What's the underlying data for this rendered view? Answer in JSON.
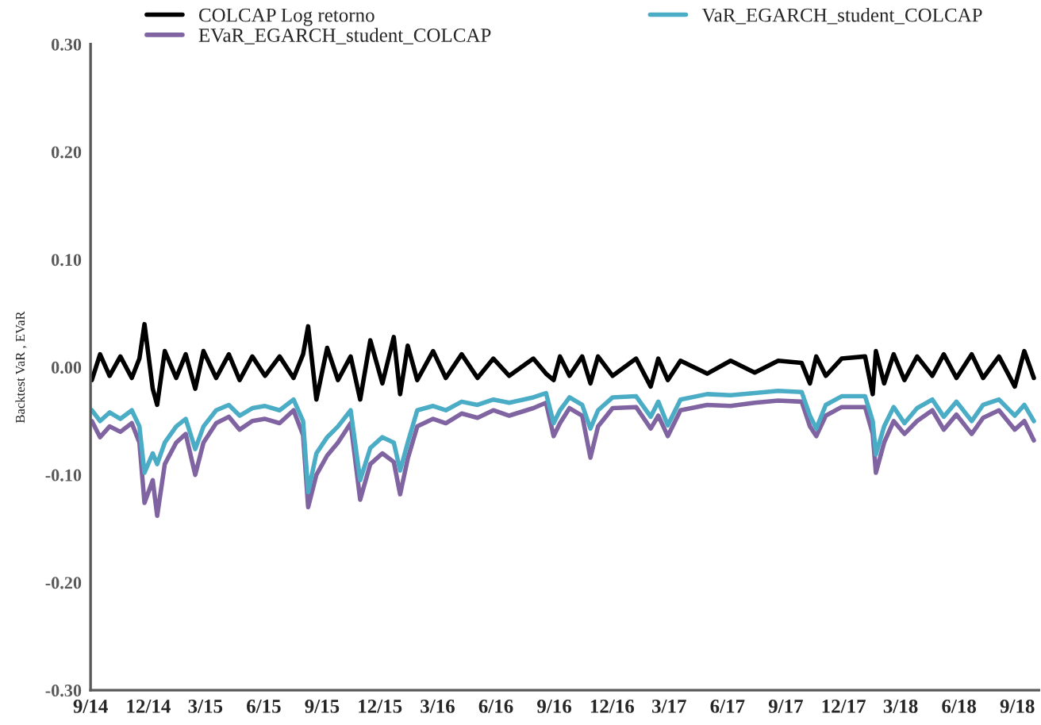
{
  "chart_data": {
    "type": "line",
    "ylabel": "Backtest VaR , EVaR",
    "x": [
      "2014-09-03",
      "2014-09-16",
      "2014-10-01",
      "2014-10-18",
      "2014-11-05",
      "2014-11-17",
      "2014-11-25",
      "2014-12-08",
      "2014-12-15",
      "2014-12-27",
      "2015-01-14",
      "2015-01-29",
      "2015-02-13",
      "2015-02-26",
      "2015-03-18",
      "2015-04-07",
      "2015-04-24",
      "2015-05-14",
      "2015-06-03",
      "2015-06-26",
      "2015-07-18",
      "2015-08-02",
      "2015-08-10",
      "2015-08-23",
      "2015-09-09",
      "2015-09-26",
      "2015-10-16",
      "2015-10-31",
      "2015-11-16",
      "2015-12-05",
      "2015-12-23",
      "2016-01-02",
      "2016-01-14",
      "2016-01-29",
      "2016-02-23",
      "2016-03-14",
      "2016-04-08",
      "2016-05-03",
      "2016-05-28",
      "2016-06-22",
      "2016-07-30",
      "2016-08-19",
      "2016-08-31",
      "2016-09-10",
      "2016-09-25",
      "2016-10-15",
      "2016-10-28",
      "2016-11-09",
      "2016-12-02",
      "2017-01-08",
      "2017-01-31",
      "2017-02-12",
      "2017-02-27",
      "2017-03-19",
      "2017-04-30",
      "2017-06-06",
      "2017-07-14",
      "2017-08-20",
      "2017-09-26",
      "2017-10-09",
      "2017-10-19",
      "2017-11-03",
      "2017-11-28",
      "2018-01-04",
      "2018-01-16",
      "2018-01-21",
      "2018-02-03",
      "2018-02-18",
      "2018-03-07",
      "2018-03-27",
      "2018-04-20",
      "2018-05-08",
      "2018-05-28",
      "2018-06-21",
      "2018-07-09",
      "2018-08-03",
      "2018-08-28",
      "2018-09-12",
      "2018-09-27"
    ],
    "series": [
      {
        "name": "COLCAP Log retorno",
        "color": "#000000",
        "values": [
          -0.012,
          0.012,
          -0.008,
          0.01,
          -0.01,
          0.008,
          0.04,
          -0.02,
          -0.035,
          0.015,
          -0.01,
          0.012,
          -0.02,
          0.015,
          -0.01,
          0.012,
          -0.012,
          0.01,
          -0.008,
          0.01,
          -0.01,
          0.012,
          0.038,
          -0.03,
          0.018,
          -0.012,
          0.01,
          -0.03,
          0.025,
          -0.015,
          0.028,
          -0.025,
          0.02,
          -0.012,
          0.015,
          -0.01,
          0.012,
          -0.01,
          0.008,
          -0.008,
          0.008,
          -0.006,
          -0.012,
          0.01,
          -0.008,
          0.01,
          -0.015,
          0.01,
          -0.008,
          0.008,
          -0.018,
          0.008,
          -0.012,
          0.006,
          -0.006,
          0.006,
          -0.005,
          0.006,
          0.004,
          -0.015,
          0.01,
          -0.008,
          0.008,
          0.01,
          -0.025,
          0.015,
          -0.015,
          0.012,
          -0.012,
          0.01,
          -0.008,
          0.012,
          -0.01,
          0.012,
          -0.01,
          0.01,
          -0.018,
          0.015,
          -0.01
        ]
      },
      {
        "name": "EVaR_EGARCH_student_COLCAP",
        "color": "#8064a2",
        "values": [
          -0.05,
          -0.065,
          -0.055,
          -0.06,
          -0.052,
          -0.07,
          -0.126,
          -0.105,
          -0.138,
          -0.09,
          -0.07,
          -0.062,
          -0.1,
          -0.07,
          -0.052,
          -0.046,
          -0.058,
          -0.05,
          -0.048,
          -0.052,
          -0.04,
          -0.063,
          -0.13,
          -0.1,
          -0.082,
          -0.07,
          -0.052,
          -0.123,
          -0.09,
          -0.08,
          -0.088,
          -0.118,
          -0.085,
          -0.055,
          -0.048,
          -0.052,
          -0.043,
          -0.047,
          -0.04,
          -0.045,
          -0.038,
          -0.033,
          -0.064,
          -0.052,
          -0.038,
          -0.045,
          -0.084,
          -0.055,
          -0.038,
          -0.037,
          -0.057,
          -0.045,
          -0.064,
          -0.04,
          -0.035,
          -0.036,
          -0.033,
          -0.031,
          -0.032,
          -0.055,
          -0.064,
          -0.045,
          -0.037,
          -0.037,
          -0.062,
          -0.098,
          -0.07,
          -0.05,
          -0.062,
          -0.05,
          -0.04,
          -0.058,
          -0.044,
          -0.062,
          -0.047,
          -0.04,
          -0.058,
          -0.05,
          -0.068
        ]
      },
      {
        "name": "VaR_EGARCH_student_COLCAP",
        "color": "#4bacc6",
        "values": [
          -0.04,
          -0.05,
          -0.042,
          -0.048,
          -0.04,
          -0.055,
          -0.098,
          -0.08,
          -0.09,
          -0.07,
          -0.055,
          -0.048,
          -0.076,
          -0.055,
          -0.04,
          -0.035,
          -0.045,
          -0.038,
          -0.036,
          -0.04,
          -0.03,
          -0.05,
          -0.116,
          -0.08,
          -0.065,
          -0.055,
          -0.04,
          -0.105,
          -0.075,
          -0.065,
          -0.07,
          -0.096,
          -0.07,
          -0.04,
          -0.036,
          -0.04,
          -0.032,
          -0.035,
          -0.03,
          -0.033,
          -0.028,
          -0.024,
          -0.052,
          -0.04,
          -0.028,
          -0.035,
          -0.057,
          -0.04,
          -0.028,
          -0.027,
          -0.046,
          -0.032,
          -0.054,
          -0.03,
          -0.025,
          -0.026,
          -0.024,
          -0.022,
          -0.023,
          -0.045,
          -0.057,
          -0.035,
          -0.027,
          -0.027,
          -0.05,
          -0.081,
          -0.055,
          -0.037,
          -0.052,
          -0.038,
          -0.03,
          -0.046,
          -0.032,
          -0.05,
          -0.035,
          -0.03,
          -0.045,
          -0.035,
          -0.05
        ]
      }
    ],
    "xlim": [
      "2014-09-01",
      "2018-10-05"
    ],
    "xticks": [
      {
        "value": "2014-09-01",
        "label": "9/14"
      },
      {
        "value": "2014-12-01",
        "label": "12/14"
      },
      {
        "value": "2015-03-01",
        "label": "3/15"
      },
      {
        "value": "2015-06-01",
        "label": "6/15"
      },
      {
        "value": "2015-09-01",
        "label": "9/15"
      },
      {
        "value": "2015-12-01",
        "label": "12/15"
      },
      {
        "value": "2016-03-01",
        "label": "3/16"
      },
      {
        "value": "2016-06-01",
        "label": "6/16"
      },
      {
        "value": "2016-09-01",
        "label": "9/16"
      },
      {
        "value": "2016-12-01",
        "label": "12/16"
      },
      {
        "value": "2017-03-01",
        "label": "3/17"
      },
      {
        "value": "2017-06-01",
        "label": "6/17"
      },
      {
        "value": "2017-09-01",
        "label": "9/17"
      },
      {
        "value": "2017-12-01",
        "label": "12/17"
      },
      {
        "value": "2018-03-01",
        "label": "3/18"
      },
      {
        "value": "2018-06-01",
        "label": "6/18"
      },
      {
        "value": "2018-09-01",
        "label": "9/18"
      }
    ],
    "ylim": [
      -0.3,
      0.3
    ],
    "yticks": [
      {
        "value": -0.3,
        "label": "-0.30"
      },
      {
        "value": -0.2,
        "label": "-0.20"
      },
      {
        "value": -0.1,
        "label": "-0.10"
      },
      {
        "value": 0.0,
        "label": "0.00"
      },
      {
        "value": 0.1,
        "label": "0.10"
      },
      {
        "value": 0.2,
        "label": "0.20"
      },
      {
        "value": 0.3,
        "label": "0.30"
      }
    ],
    "grid": false,
    "legend": "top",
    "marker": "none",
    "line_style": "solid"
  }
}
